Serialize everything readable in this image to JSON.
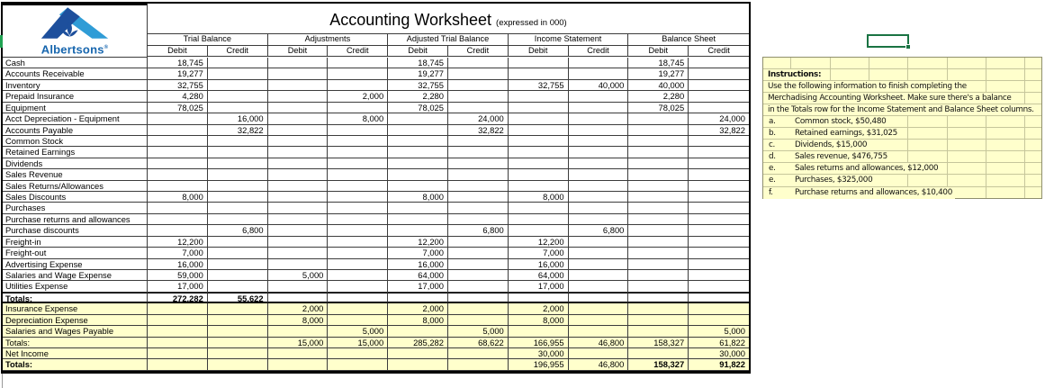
{
  "header": {
    "title": "Accounting Worksheet",
    "subtitle": "(expressed in 000)",
    "logo_text": "Albertsons",
    "registered_mark": "®"
  },
  "columns": {
    "groups": [
      "Trial Balance",
      "Adjustments",
      "Adjusted Trial Balance",
      "Income Statement",
      "Balance Sheet"
    ],
    "sub": [
      "Debit",
      "Credit"
    ]
  },
  "rows": [
    {
      "label": "Cash",
      "cells": [
        "18,745",
        "",
        "",
        "",
        "18,745",
        "",
        "",
        "",
        "18,745",
        ""
      ],
      "section": "white"
    },
    {
      "label": "Accounts Receivable",
      "cells": [
        "19,277",
        "",
        "",
        "",
        "19,277",
        "",
        "",
        "",
        "19,277",
        ""
      ],
      "section": "white"
    },
    {
      "label": "Inventory",
      "cells": [
        "32,755",
        "",
        "",
        "",
        "32,755",
        "",
        "32,755",
        "40,000",
        "40,000",
        ""
      ],
      "section": "white"
    },
    {
      "label": "Prepaid Insurance",
      "cells": [
        "4,280",
        "",
        "",
        "2,000",
        "2,280",
        "",
        "",
        "",
        "2,280",
        ""
      ],
      "section": "white"
    },
    {
      "label": "Equipment",
      "cells": [
        "78,025",
        "",
        "",
        "",
        "78,025",
        "",
        "",
        "",
        "78,025",
        ""
      ],
      "section": "white"
    },
    {
      "label": "Acct Depreciation - Equipment",
      "cells": [
        "",
        "16,000",
        "",
        "8,000",
        "",
        "24,000",
        "",
        "",
        "",
        "24,000"
      ],
      "section": "white"
    },
    {
      "label": "Accounts Payable",
      "cells": [
        "",
        "32,822",
        "",
        "",
        "",
        "32,822",
        "",
        "",
        "",
        "32,822"
      ],
      "section": "white"
    },
    {
      "label": "Common Stock",
      "cells": [
        "",
        "",
        "",
        "",
        "",
        "",
        "",
        "",
        "",
        ""
      ],
      "section": "white"
    },
    {
      "label": "Retained Earnings",
      "cells": [
        "",
        "",
        "",
        "",
        "",
        "",
        "",
        "",
        "",
        ""
      ],
      "section": "white"
    },
    {
      "label": "Dividends",
      "cells": [
        "",
        "",
        "",
        "",
        "",
        "",
        "",
        "",
        "",
        ""
      ],
      "section": "white"
    },
    {
      "label": "Sales Revenue",
      "cells": [
        "",
        "",
        "",
        "",
        "",
        "",
        "",
        "",
        "",
        ""
      ],
      "section": "white"
    },
    {
      "label": "Sales Returns/Allowances",
      "cells": [
        "",
        "",
        "",
        "",
        "",
        "",
        "",
        "",
        "",
        ""
      ],
      "section": "white"
    },
    {
      "label": "Sales Discounts",
      "cells": [
        "8,000",
        "",
        "",
        "",
        "8,000",
        "",
        "8,000",
        "",
        "",
        ""
      ],
      "section": "white"
    },
    {
      "label": "Purchases",
      "cells": [
        "",
        "",
        "",
        "",
        "",
        "",
        "",
        "",
        "",
        ""
      ],
      "section": "white"
    },
    {
      "label": "Purchase returns and allowances",
      "cells": [
        "",
        "",
        "",
        "",
        "",
        "",
        "",
        "",
        "",
        ""
      ],
      "section": "white"
    },
    {
      "label": "Purchase discounts",
      "cells": [
        "",
        "6,800",
        "",
        "",
        "",
        "6,800",
        "",
        "6,800",
        "",
        ""
      ],
      "section": "white"
    },
    {
      "label": "Freight-in",
      "cells": [
        "12,200",
        "",
        "",
        "",
        "12,200",
        "",
        "12,200",
        "",
        "",
        ""
      ],
      "section": "white"
    },
    {
      "label": "Freight-out",
      "cells": [
        "7,000",
        "",
        "",
        "",
        "7,000",
        "",
        "7,000",
        "",
        "",
        ""
      ],
      "section": "white"
    },
    {
      "label": "Advertising Expense",
      "cells": [
        "16,000",
        "",
        "",
        "",
        "16,000",
        "",
        "16,000",
        "",
        "",
        ""
      ],
      "section": "white"
    },
    {
      "label": "Salaries and Wage Expense",
      "cells": [
        "59,000",
        "",
        "5,000",
        "",
        "64,000",
        "",
        "64,000",
        "",
        "",
        ""
      ],
      "section": "white"
    },
    {
      "label": "Utilities Expense",
      "cells": [
        "17,000",
        "",
        "",
        "",
        "17,000",
        "",
        "17,000",
        "",
        "",
        ""
      ],
      "section": "white"
    },
    {
      "label": "Totals:",
      "cells": [
        "272,282",
        "55,622",
        "",
        "",
        "",
        "",
        "",
        "",
        "",
        ""
      ],
      "section": "white",
      "bold_label": true,
      "bold_cells": [
        0,
        1
      ],
      "thick_top": true,
      "thick_bottom": true
    },
    {
      "label": "Insurance Expense",
      "cells": [
        "",
        "",
        "2,000",
        "",
        "2,000",
        "",
        "2,000",
        "",
        "",
        ""
      ],
      "section": "yellow"
    },
    {
      "label": "Depreciation Expense",
      "cells": [
        "",
        "",
        "8,000",
        "",
        "8,000",
        "",
        "8,000",
        "",
        "",
        ""
      ],
      "section": "yellow"
    },
    {
      "label": "Salaries and Wages Payable",
      "cells": [
        "",
        "",
        "",
        "5,000",
        "",
        "5,000",
        "",
        "",
        "",
        "5,000"
      ],
      "section": "yellow"
    },
    {
      "label": "Totals:",
      "cells": [
        "",
        "",
        "15,000",
        "15,000",
        "285,282",
        "68,622",
        "166,955",
        "46,800",
        "158,327",
        "61,822"
      ],
      "section": "yellow"
    },
    {
      "label": "Net Income",
      "cells": [
        "",
        "",
        "",
        "",
        "",
        "",
        "30,000",
        "",
        "",
        "30,000"
      ],
      "section": "yellow"
    },
    {
      "label": "Totals:",
      "cells": [
        "",
        "",
        "",
        "",
        "",
        "",
        "196,955",
        "46,800",
        "158,327",
        "91,822"
      ],
      "section": "yellow",
      "bold_label": true,
      "bold_cells": [
        8,
        9
      ]
    }
  ],
  "instructions": {
    "lines": [
      {
        "bullet": "",
        "text": ""
      },
      {
        "bullet": "",
        "text": "Instructions:",
        "bold": true
      },
      {
        "bullet": "",
        "text": "Use the following information to finish completing the"
      },
      {
        "bullet": "",
        "text": "Merchadising Accounting Worksheet. Make sure there's a balance"
      },
      {
        "bullet": "",
        "text": "in the Totals row for the Income Statement and Balance Sheet columns."
      },
      {
        "bullet": "a.",
        "text": "Common stock, $50,480"
      },
      {
        "bullet": "b.",
        "text": "Retained earnings, $31,025"
      },
      {
        "bullet": "c.",
        "text": "Dividends, $15,000"
      },
      {
        "bullet": "d.",
        "text": "Sales revenue, $476,755"
      },
      {
        "bullet": "e.",
        "text": "Sales returns and allowances, $12,000"
      },
      {
        "bullet": "e.",
        "text": "Purchases, $325,000"
      },
      {
        "bullet": "f.",
        "text": "Purchase returns and allowances, $10,400"
      }
    ]
  },
  "colors": {
    "highlight_yellow": "#ffffcc",
    "selection_green": "#1a7343",
    "row_indicator_green": "#21a353",
    "logo_dark_blue": "#1d4f9c",
    "logo_light_blue": "#2f9cd6",
    "logo_text_blue": "#1766ae",
    "gridline_dark": "#3c3c3c",
    "panel_gridline": "#c6c69b"
  }
}
